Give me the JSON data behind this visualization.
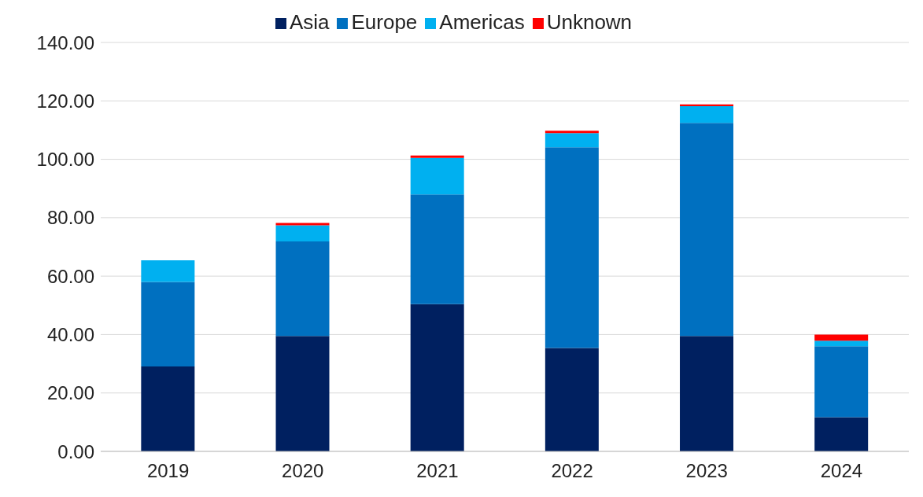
{
  "chart_data": {
    "type": "bar",
    "stacked": true,
    "categories": [
      "2019",
      "2020",
      "2021",
      "2022",
      "2023",
      "2024"
    ],
    "series": [
      {
        "name": "Asia",
        "color": "#002060",
        "values": [
          29.1,
          39.5,
          50.4,
          35.4,
          39.5,
          11.7
        ]
      },
      {
        "name": "Europe",
        "color": "#0070c0",
        "values": [
          28.9,
          32.4,
          37.6,
          68.7,
          73.0,
          24.3
        ]
      },
      {
        "name": "Americas",
        "color": "#00b0f0",
        "values": [
          7.4,
          5.5,
          12.5,
          4.9,
          5.7,
          1.9
        ]
      },
      {
        "name": "Unknown",
        "color": "#ff0000",
        "values": [
          0,
          0.8,
          0.8,
          0.8,
          0.6,
          2.1
        ]
      }
    ],
    "ylim": [
      0,
      140
    ],
    "yticks": [
      {
        "value": 0,
        "label": "0.00"
      },
      {
        "value": 20,
        "label": "20.00"
      },
      {
        "value": 40,
        "label": "40.00"
      },
      {
        "value": 60,
        "label": "60.00"
      },
      {
        "value": 80,
        "label": "80.00"
      },
      {
        "value": 100,
        "label": "100.00"
      },
      {
        "value": 120,
        "label": "120.00"
      },
      {
        "value": 140,
        "label": "140.00"
      }
    ],
    "grid": "y",
    "legend": "top"
  }
}
